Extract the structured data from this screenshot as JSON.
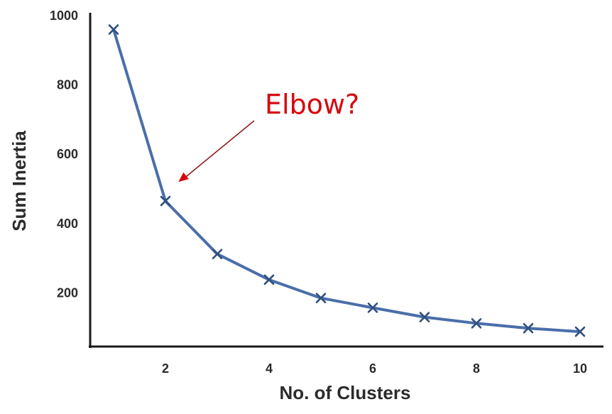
{
  "chart_data": {
    "type": "line",
    "title": "",
    "xlabel": "No. of Clusters",
    "ylabel": "Sum Inertia",
    "x": [
      1,
      2,
      3,
      4,
      5,
      6,
      7,
      8,
      9,
      10
    ],
    "series": [
      {
        "values": [
          960,
          465,
          312,
          238,
          185,
          157,
          130,
          112,
          98,
          88
        ]
      }
    ],
    "xlim": [
      0.5,
      10.5
    ],
    "ylim": [
      0,
      1000
    ],
    "xticks": [
      2,
      4,
      6,
      8,
      10
    ],
    "yticks": [
      200,
      400,
      600,
      800,
      1000
    ],
    "marker": "x",
    "grid": false,
    "colors": {
      "line": "#4a6ea9",
      "marker": "#2f4f80",
      "axis": "#1a1a1a",
      "annotation": "#d6080f",
      "arrow": "#8b1a1a"
    },
    "annotation": {
      "text": "Elbow?",
      "target": {
        "x": 2.25,
        "y": 520
      }
    }
  }
}
